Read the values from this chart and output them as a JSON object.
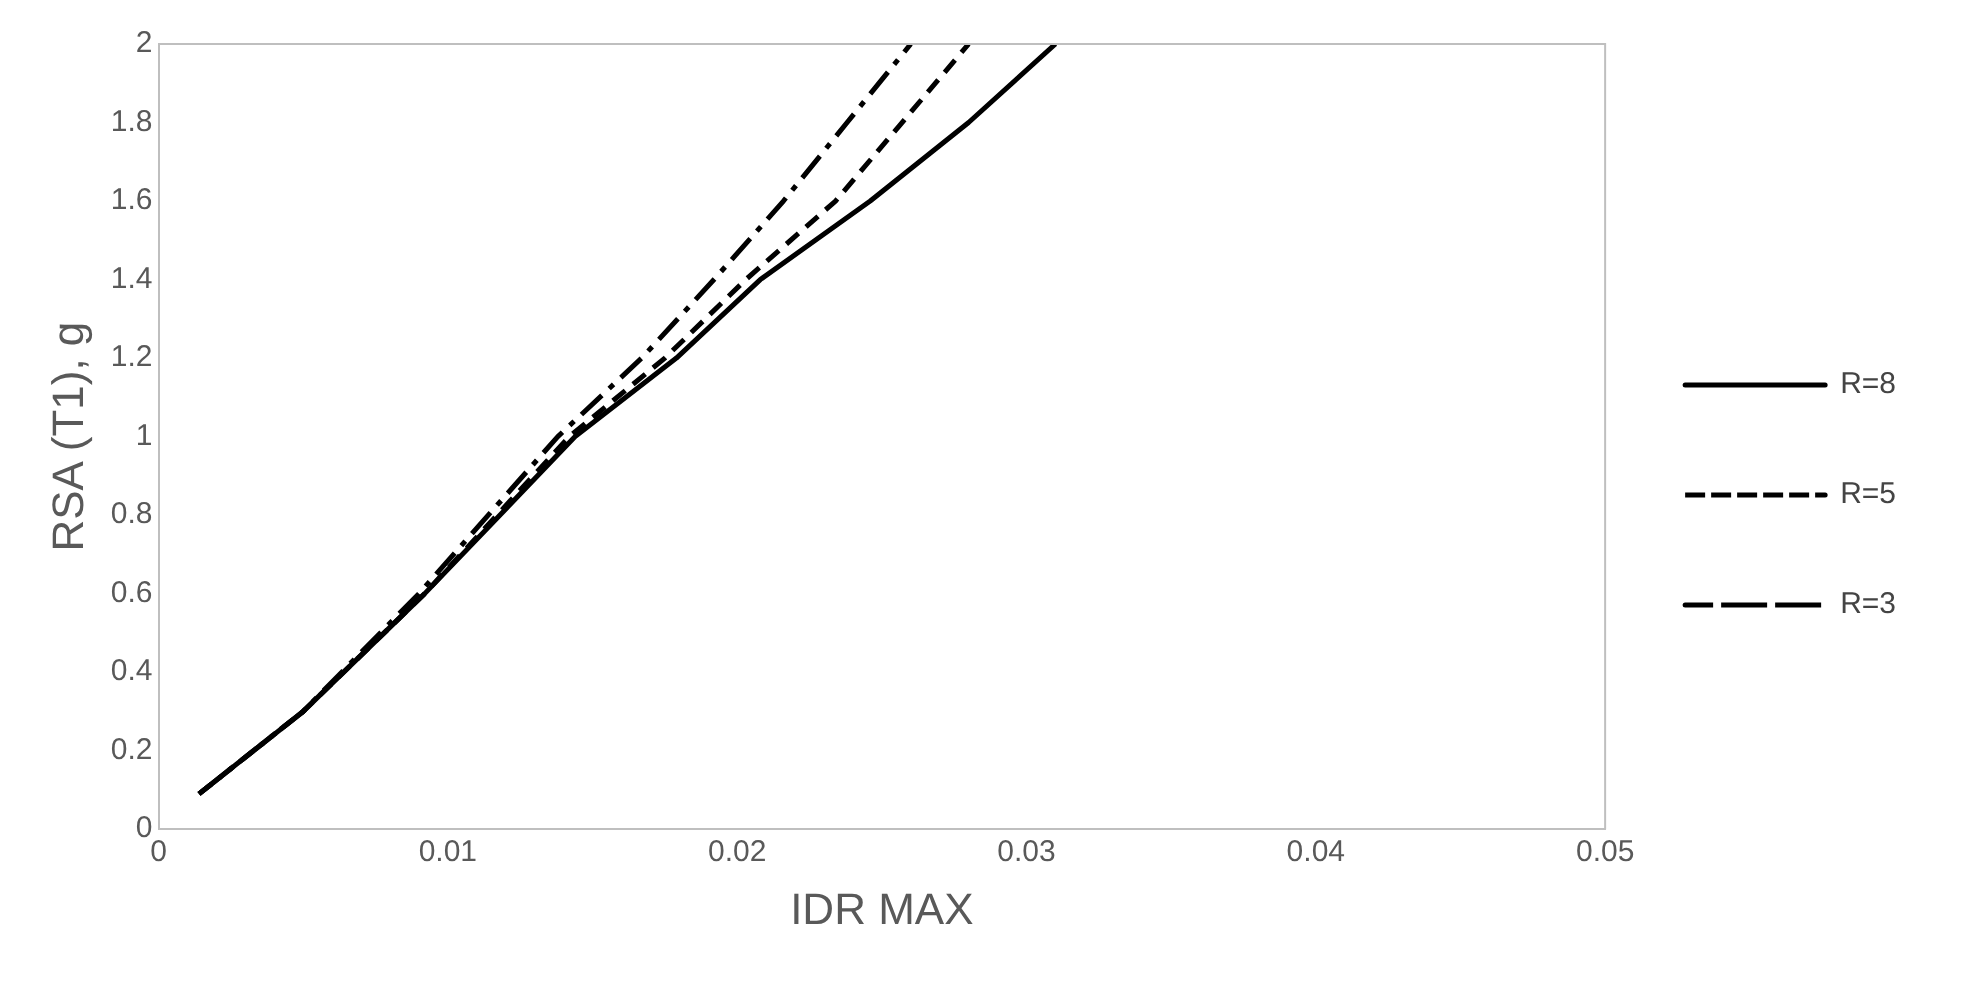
{
  "chart_data": {
    "type": "line",
    "xlabel": "IDR MAX",
    "ylabel": "RSA (T1), g",
    "xlim": [
      0,
      0.05
    ],
    "xticks": [
      0,
      0.01,
      0.02,
      0.03,
      0.04,
      0.05
    ],
    "ylim": [
      0,
      2
    ],
    "yticks": [
      0,
      0.2,
      0.4,
      0.6,
      0.8,
      1,
      1.2,
      1.4,
      1.6,
      1.8,
      2
    ],
    "grid": false,
    "legend": "right",
    "marker": "none",
    "series": [
      {
        "name": "R=8",
        "color": "#000000",
        "line_style": "solid",
        "x": [
          0.0014,
          0.005,
          0.0092,
          0.0144,
          0.0179,
          0.0208,
          0.0246,
          0.028,
          0.031
        ],
        "values": [
          0.09,
          0.3,
          0.6,
          1,
          1.2,
          1.4,
          1.6,
          1.8,
          2
        ]
      },
      {
        "name": "R=5",
        "color": "#000000",
        "line_style": "dashed",
        "x": [
          0.0014,
          0.005,
          0.0092,
          0.0142,
          0.0175,
          0.0203,
          0.0234,
          0.0257,
          0.028
        ],
        "values": [
          0.09,
          0.3,
          0.6,
          1,
          1.2,
          1.4,
          1.6,
          1.8,
          2
        ]
      },
      {
        "name": "R=3",
        "color": "#000000",
        "line_style": "dashdot",
        "x": [
          0.0014,
          0.005,
          0.009,
          0.0138,
          0.0167,
          0.0192,
          0.0216,
          0.0238,
          0.026
        ],
        "values": [
          0.09,
          0.3,
          0.6,
          1,
          1.2,
          1.4,
          1.6,
          1.8,
          2
        ]
      }
    ]
  }
}
